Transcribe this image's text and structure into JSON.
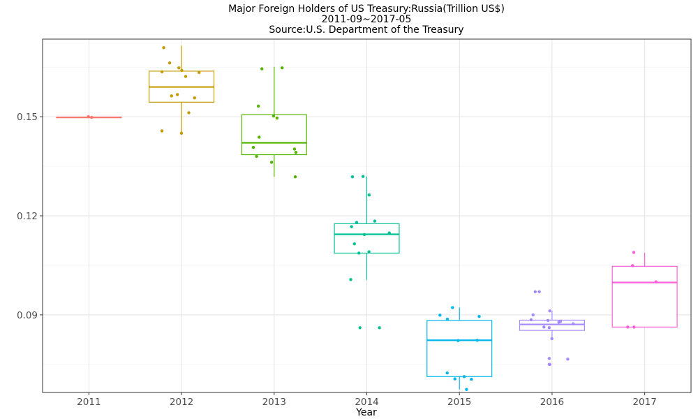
{
  "chart_data": {
    "type": "boxplot",
    "title_lines": [
      "Major Foreign Holders of US Treasury:Russia(Trillion US$)",
      "2011-09~2017-05",
      "Source:U.S. Department of the Treasury"
    ],
    "xlabel": "Year",
    "ylabel": "",
    "categories": [
      "2011",
      "2012",
      "2013",
      "2014",
      "2015",
      "2016",
      "2017"
    ],
    "ylim": [
      0.0665,
      0.1735
    ],
    "yticks": [
      0.09,
      0.12,
      0.15
    ],
    "ytick_labels": [
      "0.09",
      "0.12",
      "0.15"
    ],
    "grid": true,
    "legend": "none",
    "colors": [
      "#f8766d",
      "#c49a00",
      "#53b400",
      "#00c094",
      "#00b6eb",
      "#a58aff",
      "#fb61d7"
    ],
    "boxes": [
      {
        "year": "2011",
        "q1": 0.1497,
        "median": 0.1498,
        "q3": 0.1499,
        "whisker_low": 0.1497,
        "whisker_high": 0.1501
      },
      {
        "year": "2012",
        "q1": 0.1544,
        "median": 0.159,
        "q3": 0.1638,
        "whisker_low": 0.1451,
        "whisker_high": 0.1715
      },
      {
        "year": "2013",
        "q1": 0.1385,
        "median": 0.1421,
        "q3": 0.1506,
        "whisker_low": 0.1318,
        "whisker_high": 0.1651
      },
      {
        "year": "2014",
        "q1": 0.1087,
        "median": 0.1144,
        "q3": 0.1176,
        "whisker_low": 0.1006,
        "whisker_high": 0.1319
      },
      {
        "year": "2015",
        "q1": 0.0713,
        "median": 0.0823,
        "q3": 0.0883,
        "whisker_low": 0.0674,
        "whisker_high": 0.0922
      },
      {
        "year": "2016",
        "q1": 0.0853,
        "median": 0.0871,
        "q3": 0.0884,
        "whisker_low": 0.083,
        "whisker_high": 0.0912
      },
      {
        "year": "2017",
        "q1": 0.0863,
        "median": 0.0998,
        "q3": 0.1047,
        "whisker_low": 0.0863,
        "whisker_high": 0.1088
      }
    ],
    "points": [
      {
        "year": "2011",
        "values": [
          0.15,
          0.1498
        ]
      },
      {
        "year": "2012",
        "values": [
          0.1709,
          0.1663,
          0.1648,
          0.164,
          0.1636,
          0.1634,
          0.1622,
          0.1567,
          0.1563,
          0.1557,
          0.1512,
          0.1457,
          0.145
        ]
      },
      {
        "year": "2013",
        "values": [
          0.1645,
          0.1648,
          0.1532,
          0.1496,
          0.1502,
          0.1438,
          0.1407,
          0.1402,
          0.1392,
          0.138,
          0.1362,
          0.1318
        ]
      },
      {
        "year": "2014",
        "values": [
          0.1318,
          0.1319,
          0.1263,
          0.1184,
          0.118,
          0.1167,
          0.1148,
          0.1143,
          0.1115,
          0.1091,
          0.1087,
          0.1007,
          0.0861,
          0.0861
        ]
      },
      {
        "year": "2015",
        "values": [
          0.0922,
          0.0899,
          0.0895,
          0.0887,
          0.0823,
          0.0822,
          0.0724,
          0.0713,
          0.0706,
          0.0705,
          0.0674
        ]
      },
      {
        "year": "2016",
        "values": [
          0.097,
          0.097,
          0.0912,
          0.09,
          0.0885,
          0.0883,
          0.088,
          0.0878,
          0.0873,
          0.0863,
          0.0861,
          0.0828,
          0.0768,
          0.0766,
          0.075,
          0.075
        ]
      },
      {
        "year": "2017",
        "values": [
          0.1089,
          0.1049,
          0.1,
          0.0863,
          0.0863
        ]
      }
    ]
  }
}
